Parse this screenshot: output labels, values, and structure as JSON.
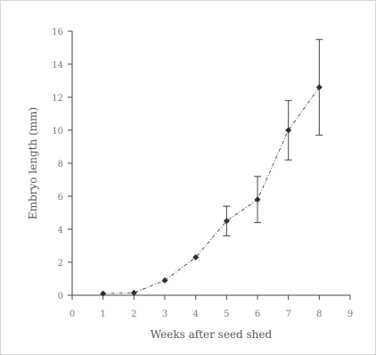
{
  "chart_data": {
    "type": "line",
    "title": "",
    "xlabel": "Weeks after seed shed",
    "ylabel": "Embryo length (mm)",
    "xlim": [
      0,
      9
    ],
    "ylim": [
      0,
      16
    ],
    "x_ticks": [
      0,
      1,
      2,
      3,
      4,
      5,
      6,
      7,
      8,
      9
    ],
    "y_ticks": [
      0,
      2,
      4,
      6,
      8,
      10,
      12,
      14,
      16
    ],
    "grid": false,
    "legend": "none",
    "series": [
      {
        "x": [
          1,
          2,
          3,
          4,
          5,
          6,
          7,
          8
        ],
        "values": [
          0.1,
          0.15,
          0.9,
          2.3,
          4.5,
          5.8,
          10.0,
          12.6
        ],
        "error": [
          0.15,
          0.15,
          0.15,
          0.15,
          0.9,
          1.4,
          1.8,
          2.9
        ]
      }
    ],
    "colors": {
      "line": "#555555",
      "marker": "#2f2f2f",
      "axis": "#444444",
      "text": "#666666"
    }
  }
}
